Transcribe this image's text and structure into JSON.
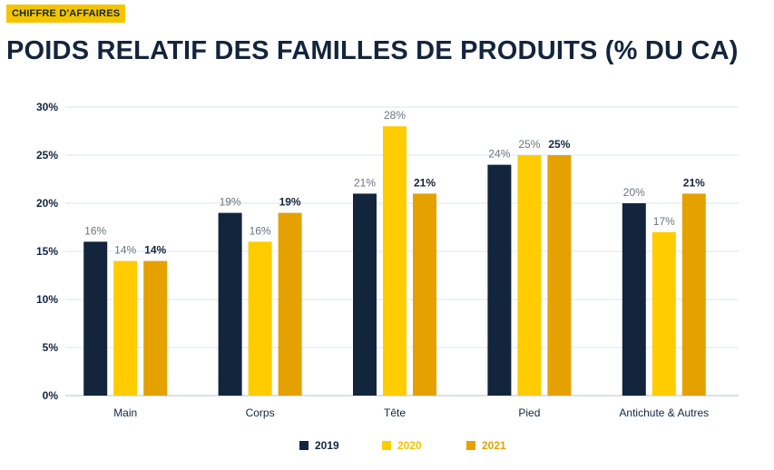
{
  "header": {
    "badge": "CHIFFRE D'AFFAIRES",
    "title": "POIDS RELATIF DES FAMILLES DE PRODUITS (% DU CA)"
  },
  "chart_data": {
    "type": "bar",
    "title": "POIDS RELATIF DES FAMILLES DE PRODUITS (% DU CA)",
    "xlabel": "",
    "ylabel": "",
    "ylim": [
      0,
      30
    ],
    "yticks": [
      0,
      5,
      10,
      15,
      20,
      25,
      30
    ],
    "ytick_labels": [
      "0%",
      "5%",
      "10%",
      "15%",
      "20%",
      "25%",
      "30%"
    ],
    "grid": true,
    "legend_position": "bottom-center",
    "categories": [
      "Main",
      "Corps",
      "Tête",
      "Pied",
      "Antichute & Autres"
    ],
    "series": [
      {
        "name": "2019",
        "color": "#13253d",
        "values": [
          16,
          19,
          21,
          24,
          20
        ],
        "labels": [
          "16%",
          "19%",
          "21%",
          "24%",
          "20%"
        ]
      },
      {
        "name": "2020",
        "color": "#ffcc00",
        "values": [
          14,
          16,
          28,
          25,
          17
        ],
        "labels": [
          "14%",
          "16%",
          "28%",
          "25%",
          "17%"
        ]
      },
      {
        "name": "2021",
        "color": "#e5a100",
        "values": [
          14,
          19,
          21,
          25,
          21
        ],
        "labels": [
          "14%",
          "19%",
          "21%",
          "25%",
          "21%"
        ]
      }
    ]
  }
}
